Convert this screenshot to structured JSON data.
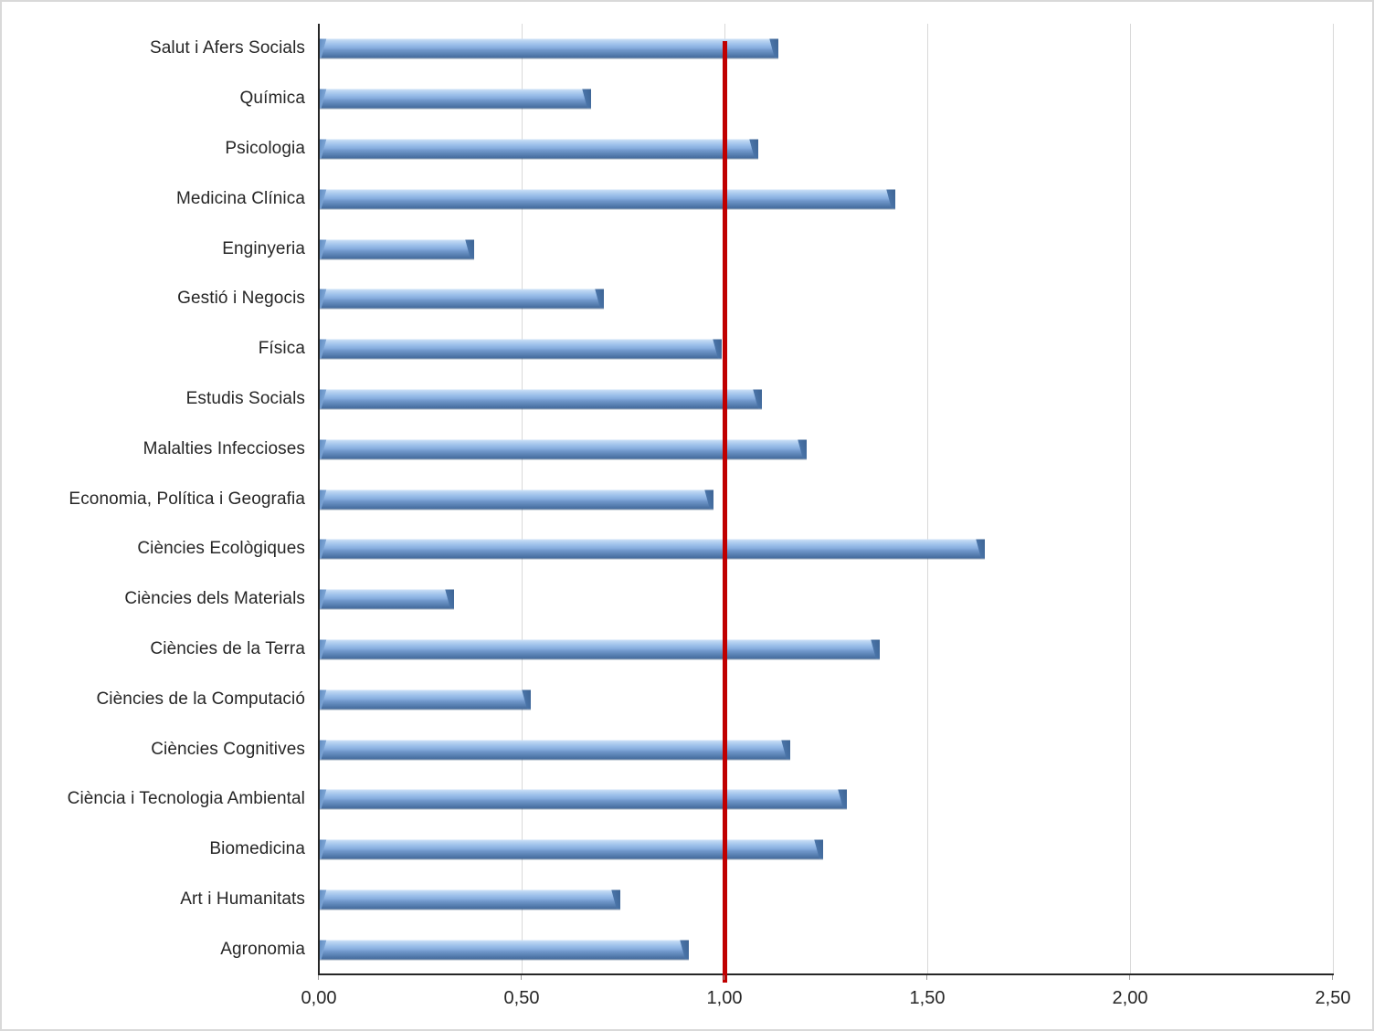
{
  "chart_data": {
    "type": "bar",
    "orientation": "horizontal",
    "title": "",
    "xlabel": "",
    "ylabel": "",
    "xlim": [
      0,
      2.5
    ],
    "grid": true,
    "legend": false,
    "categories": [
      "Salut i Afers Socials",
      "Química",
      "Psicologia",
      "Medicina Clínica",
      "Enginyeria",
      "Gestió i Negocis",
      "Física",
      "Estudis Socials",
      "Malalties Infeccioses",
      "Economia, Política i Geografia",
      "Ciències Ecològiques",
      "Ciències dels Materials",
      "Ciències de la Terra",
      "Ciències de la Computació",
      "Ciències Cognitives",
      "Ciència i Tecnologia Ambiental",
      "Biomedicina",
      "Art i Humanitats",
      "Agronomia"
    ],
    "values": [
      1.13,
      0.67,
      1.08,
      1.42,
      0.38,
      0.7,
      0.99,
      1.09,
      1.2,
      0.97,
      1.64,
      0.33,
      1.38,
      0.52,
      1.16,
      1.3,
      1.24,
      0.74,
      0.91
    ],
    "x_ticks": {
      "values": [
        0,
        0.5,
        1.0,
        1.5,
        2.0,
        2.5
      ],
      "labels": [
        "0,00",
        "0,50",
        "1,00",
        "1,50",
        "2,00",
        "2,50"
      ]
    },
    "reference_line": {
      "value": 1.0,
      "color": "#c00000"
    },
    "colors": {
      "bar_light": "#b7d2f1",
      "bar_mid": "#7fa5d8",
      "bar_dark": "#4a70a2",
      "gridline": "#d9d9d9",
      "axis": "#262626",
      "text": "#262626"
    }
  }
}
